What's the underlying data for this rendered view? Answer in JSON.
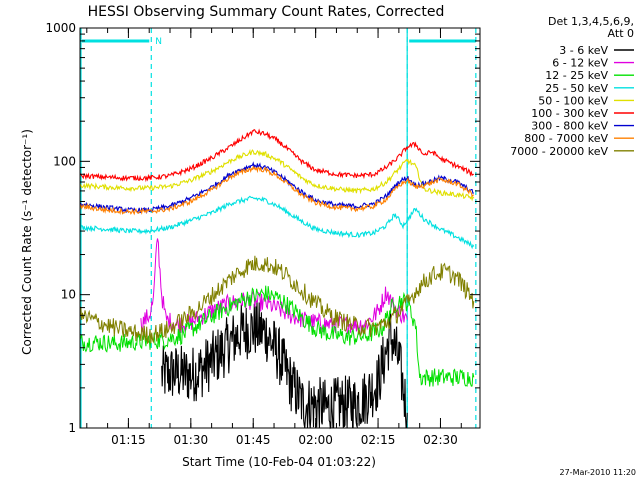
{
  "chart_data": {
    "type": "line",
    "title": "HESSI Observing Summary Count Rates, Corrected",
    "ylabel": "Corrected Count Rate (s⁻¹ detector⁻¹)",
    "xlabel": "Start Time (10-Feb-04 01:03:22)",
    "y_scale": "log",
    "ylim": [
      1,
      1000
    ],
    "xlim": [
      "01:03:22",
      "02:39:30"
    ],
    "y_ticks": [
      {
        "value": 1,
        "label": "1"
      },
      {
        "value": 10,
        "label": "10"
      },
      {
        "value": 100,
        "label": "100"
      },
      {
        "value": 1000,
        "label": "1000"
      }
    ],
    "x_ticks": [
      "01:15",
      "01:30",
      "01:45",
      "02:00",
      "02:15",
      "02:30"
    ],
    "legend_header": [
      "Det 1,3,4,5,6,9,",
      "Att 0"
    ],
    "legend_position": "right",
    "timestamp": "27-Mar-2010 11:20",
    "annotations": {
      "night_label": "N",
      "solid_lines": [
        "01:03:22",
        "02:22:00"
      ],
      "dashed_lines": [
        "01:20:30",
        "02:22:00",
        "02:38:30"
      ]
    },
    "series": [
      {
        "name": "3 - 6 keV",
        "color": "#000000",
        "points": [
          [
            "01:23",
            2.5
          ],
          [
            "01:26",
            2.6
          ],
          [
            "01:30",
            2.5
          ],
          [
            "01:33",
            2.8
          ],
          [
            "01:36",
            3.4
          ],
          [
            "01:39",
            4.2
          ],
          [
            "01:42",
            5.2
          ],
          [
            "01:45",
            5.6
          ],
          [
            "01:48",
            5.2
          ],
          [
            "01:51",
            3.6
          ],
          [
            "01:54",
            2.2
          ],
          [
            "01:57",
            1.5
          ],
          [
            "02:00",
            1.5
          ],
          [
            "02:03",
            1.4
          ],
          [
            "02:06",
            1.5
          ],
          [
            "02:09",
            1.5
          ],
          [
            "02:12",
            1.7
          ],
          [
            "02:15",
            2.2
          ],
          [
            "02:18",
            5.0
          ],
          [
            "02:20",
            3.2
          ],
          [
            "02:22",
            1.3
          ]
        ]
      },
      {
        "name": "6 - 12 keV",
        "color": "#e000e0",
        "points": [
          [
            "01:18",
            6.0
          ],
          [
            "01:20",
            7.0
          ],
          [
            "01:21",
            9.0
          ],
          [
            "01:22",
            28.0
          ],
          [
            "01:23",
            10.0
          ],
          [
            "01:24",
            6.5
          ],
          [
            "01:27",
            6.0
          ],
          [
            "01:30",
            6.2
          ],
          [
            "01:33",
            7.0
          ],
          [
            "01:36",
            7.8
          ],
          [
            "01:39",
            8.5
          ],
          [
            "01:42",
            9.0
          ],
          [
            "01:45",
            9.0
          ],
          [
            "01:48",
            8.6
          ],
          [
            "01:51",
            7.8
          ],
          [
            "01:54",
            7.0
          ],
          [
            "01:57",
            6.5
          ],
          [
            "02:00",
            6.2
          ],
          [
            "02:03",
            6.0
          ],
          [
            "02:06",
            6.0
          ],
          [
            "02:09",
            6.0
          ],
          [
            "02:12",
            6.0
          ],
          [
            "02:15",
            7.5
          ],
          [
            "02:17",
            10.5
          ],
          [
            "02:19",
            8.0
          ],
          [
            "02:22",
            6.5
          ]
        ]
      },
      {
        "name": "12 - 25 keV",
        "color": "#00e000",
        "points": [
          [
            "01:03:22",
            4.4
          ],
          [
            "01:08",
            4.4
          ],
          [
            "01:12",
            4.3
          ],
          [
            "01:16",
            4.4
          ],
          [
            "01:20",
            4.5
          ],
          [
            "01:24",
            4.6
          ],
          [
            "01:28",
            5.0
          ],
          [
            "01:32",
            6.0
          ],
          [
            "01:36",
            7.2
          ],
          [
            "01:40",
            8.4
          ],
          [
            "01:44",
            9.6
          ],
          [
            "01:48",
            10.2
          ],
          [
            "01:51",
            9.4
          ],
          [
            "01:54",
            8.0
          ],
          [
            "01:57",
            6.6
          ],
          [
            "02:00",
            5.6
          ],
          [
            "02:04",
            5.0
          ],
          [
            "02:08",
            4.8
          ],
          [
            "02:12",
            4.9
          ],
          [
            "02:16",
            5.6
          ],
          [
            "02:18",
            7.8
          ],
          [
            "02:20",
            9.0
          ],
          [
            "02:22",
            8.8
          ],
          [
            "02:24",
            6.0
          ],
          [
            "02:25",
            2.4
          ],
          [
            "02:38",
            2.4
          ]
        ]
      },
      {
        "name": "25 - 50 keV",
        "color": "#00e0e0",
        "points": [
          [
            "01:03:22",
            32
          ],
          [
            "01:10",
            31
          ],
          [
            "01:15",
            30
          ],
          [
            "01:20",
            30
          ],
          [
            "01:25",
            32
          ],
          [
            "01:30",
            36
          ],
          [
            "01:35",
            41
          ],
          [
            "01:40",
            49
          ],
          [
            "01:45",
            53
          ],
          [
            "01:48",
            51
          ],
          [
            "01:51",
            46
          ],
          [
            "01:54",
            40
          ],
          [
            "01:57",
            35
          ],
          [
            "02:00",
            31
          ],
          [
            "02:05",
            29
          ],
          [
            "02:10",
            28
          ],
          [
            "02:14",
            29
          ],
          [
            "02:17",
            33
          ],
          [
            "02:19",
            40
          ],
          [
            "02:21",
            33
          ],
          [
            "02:24",
            44
          ],
          [
            "02:26",
            37
          ],
          [
            "02:30",
            31
          ],
          [
            "02:34",
            27
          ],
          [
            "02:38",
            23
          ]
        ]
      },
      {
        "name": "50 - 100 keV",
        "color": "#e0e000",
        "points": [
          [
            "01:03:22",
            66
          ],
          [
            "01:10",
            64
          ],
          [
            "01:15",
            63
          ],
          [
            "01:20",
            63
          ],
          [
            "01:25",
            65
          ],
          [
            "01:30",
            72
          ],
          [
            "01:35",
            84
          ],
          [
            "01:40",
            103
          ],
          [
            "01:45",
            118
          ],
          [
            "01:48",
            113
          ],
          [
            "01:51",
            102
          ],
          [
            "01:54",
            87
          ],
          [
            "01:57",
            74
          ],
          [
            "02:00",
            66
          ],
          [
            "02:05",
            62
          ],
          [
            "02:10",
            60
          ],
          [
            "02:14",
            62
          ],
          [
            "02:17",
            70
          ],
          [
            "02:20",
            88
          ],
          [
            "02:22",
            102
          ],
          [
            "02:24",
            92
          ],
          [
            "02:26",
            62
          ],
          [
            "02:30",
            58
          ],
          [
            "02:34",
            56
          ],
          [
            "02:38",
            53
          ]
        ]
      },
      {
        "name": "100 - 300 keV",
        "color": "#ff0000",
        "points": [
          [
            "01:03:22",
            78
          ],
          [
            "01:10",
            76
          ],
          [
            "01:15",
            75
          ],
          [
            "01:20",
            75
          ],
          [
            "01:25",
            78
          ],
          [
            "01:30",
            88
          ],
          [
            "01:35",
            106
          ],
          [
            "01:40",
            132
          ],
          [
            "01:45",
            168
          ],
          [
            "01:48",
            160
          ],
          [
            "01:51",
            142
          ],
          [
            "01:54",
            118
          ],
          [
            "01:57",
            98
          ],
          [
            "02:00",
            86
          ],
          [
            "02:05",
            80
          ],
          [
            "02:10",
            78
          ],
          [
            "02:14",
            80
          ],
          [
            "02:17",
            90
          ],
          [
            "02:20",
            108
          ],
          [
            "02:22",
            128
          ],
          [
            "02:24",
            135
          ],
          [
            "02:26",
            112
          ],
          [
            "02:28",
            118
          ],
          [
            "02:30",
            105
          ],
          [
            "02:34",
            92
          ],
          [
            "02:38",
            80
          ]
        ]
      },
      {
        "name": "300 - 800 keV",
        "color": "#0000d0",
        "points": [
          [
            "01:03:22",
            48
          ],
          [
            "01:10",
            45
          ],
          [
            "01:15",
            43
          ],
          [
            "01:20",
            43
          ],
          [
            "01:25",
            46
          ],
          [
            "01:30",
            53
          ],
          [
            "01:35",
            64
          ],
          [
            "01:40",
            82
          ],
          [
            "01:45",
            94
          ],
          [
            "01:48",
            90
          ],
          [
            "01:51",
            80
          ],
          [
            "01:54",
            68
          ],
          [
            "01:57",
            58
          ],
          [
            "02:00",
            51
          ],
          [
            "02:05",
            47
          ],
          [
            "02:10",
            46
          ],
          [
            "02:14",
            48
          ],
          [
            "02:17",
            55
          ],
          [
            "02:20",
            70
          ],
          [
            "02:22",
            76
          ],
          [
            "02:24",
            66
          ],
          [
            "02:26",
            68
          ],
          [
            "02:30",
            75
          ],
          [
            "02:34",
            70
          ],
          [
            "02:38",
            58
          ]
        ]
      },
      {
        "name": "800 - 7000 keV",
        "color": "#ff8000",
        "points": [
          [
            "01:03:22",
            46
          ],
          [
            "01:10",
            43
          ],
          [
            "01:15",
            42
          ],
          [
            "01:20",
            42
          ],
          [
            "01:25",
            44
          ],
          [
            "01:30",
            50
          ],
          [
            "01:35",
            61
          ],
          [
            "01:40",
            78
          ],
          [
            "01:45",
            89
          ],
          [
            "01:48",
            86
          ],
          [
            "01:51",
            77
          ],
          [
            "01:54",
            65
          ],
          [
            "01:57",
            55
          ],
          [
            "02:00",
            49
          ],
          [
            "02:05",
            45
          ],
          [
            "02:10",
            44
          ],
          [
            "02:14",
            46
          ],
          [
            "02:17",
            52
          ],
          [
            "02:20",
            66
          ],
          [
            "02:22",
            72
          ],
          [
            "02:24",
            64
          ],
          [
            "02:26",
            66
          ],
          [
            "02:30",
            73
          ],
          [
            "02:34",
            68
          ],
          [
            "02:38",
            56
          ]
        ]
      },
      {
        "name": "7000 - 20000 keV",
        "color": "#808000",
        "points": [
          [
            "01:03:22",
            7.0
          ],
          [
            "01:08",
            6.2
          ],
          [
            "01:12",
            5.6
          ],
          [
            "01:16",
            5.2
          ],
          [
            "01:20",
            5.0
          ],
          [
            "01:24",
            5.4
          ],
          [
            "01:28",
            6.4
          ],
          [
            "01:32",
            8.0
          ],
          [
            "01:36",
            10.4
          ],
          [
            "01:40",
            13.6
          ],
          [
            "01:44",
            16.6
          ],
          [
            "01:47",
            17.4
          ],
          [
            "01:50",
            16.2
          ],
          [
            "01:53",
            14.0
          ],
          [
            "01:56",
            11.4
          ],
          [
            "01:59",
            9.2
          ],
          [
            "02:02",
            7.6
          ],
          [
            "02:06",
            6.4
          ],
          [
            "02:10",
            5.8
          ],
          [
            "02:14",
            5.6
          ],
          [
            "02:18",
            6.4
          ],
          [
            "02:22",
            8.6
          ],
          [
            "02:25",
            11.6
          ],
          [
            "02:28",
            14.0
          ],
          [
            "02:31",
            15.0
          ],
          [
            "02:34",
            13.4
          ],
          [
            "02:36",
            11.0
          ],
          [
            "02:38",
            9.0
          ]
        ]
      }
    ]
  }
}
